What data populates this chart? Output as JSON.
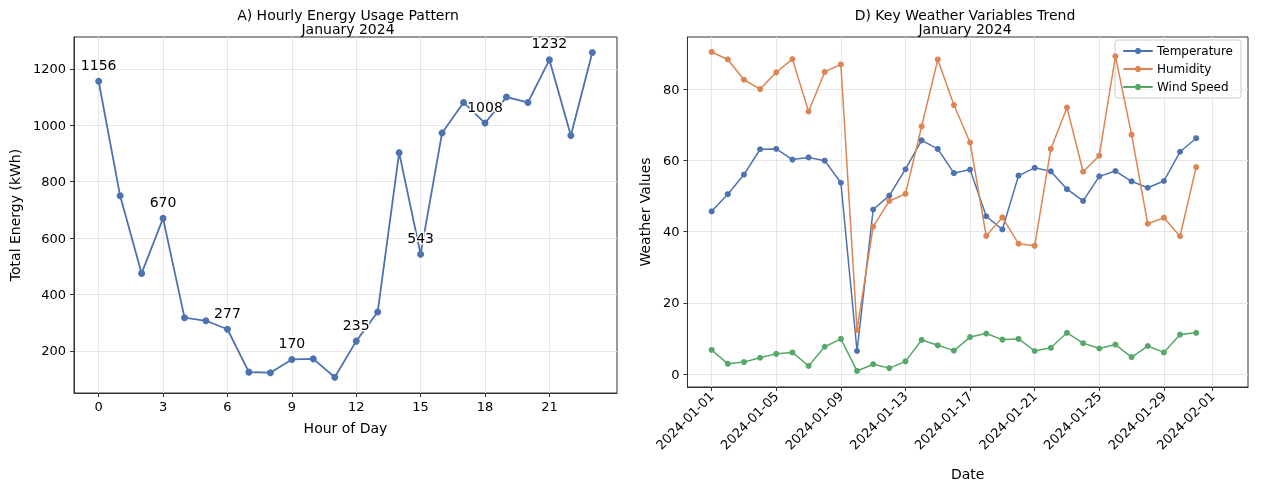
{
  "chart_data": [
    {
      "type": "line",
      "title": "A) Hourly Energy Usage Pattern",
      "subtitle": "January 2024",
      "xlabel": "Hour of Day",
      "ylabel": "Total Energy (kWh)",
      "x": [
        0,
        1,
        2,
        3,
        4,
        5,
        6,
        7,
        8,
        9,
        10,
        11,
        12,
        13,
        14,
        15,
        16,
        17,
        18,
        19,
        20,
        21,
        22,
        23
      ],
      "series": [
        {
          "color": "#4c72b0",
          "values": [
            1156,
            750,
            475,
            670,
            318,
            307,
            277,
            125,
            123,
            170,
            172,
            107,
            235,
            338,
            903,
            543,
            973,
            1081,
            1008,
            1100,
            1081,
            1232,
            964,
            1258
          ],
          "value_labels": [
            "1156",
            null,
            null,
            "670",
            null,
            null,
            "277",
            null,
            null,
            "170",
            null,
            null,
            "235",
            null,
            null,
            "543",
            null,
            null,
            "1008",
            null,
            null,
            "1232",
            null,
            null
          ]
        }
      ],
      "xlim": [
        -1.15,
        24.15
      ],
      "xticks": [
        0,
        3,
        6,
        9,
        12,
        15,
        18,
        21
      ],
      "ylim": [
        51,
        1313
      ],
      "yticks": [
        200,
        400,
        600,
        800,
        1000,
        1200
      ],
      "grid": true,
      "marker": "circle",
      "line_style": "solid",
      "legend": false
    },
    {
      "type": "line",
      "title": "D) Key Weather Variables Trend",
      "subtitle": "January 2024",
      "xlabel": "Date",
      "ylabel": "Weather Values",
      "x": [
        "2024-01-01",
        "2024-01-02",
        "2024-01-03",
        "2024-01-04",
        "2024-01-05",
        "2024-01-06",
        "2024-01-07",
        "2024-01-08",
        "2024-01-09",
        "2024-01-10",
        "2024-01-11",
        "2024-01-12",
        "2024-01-13",
        "2024-01-14",
        "2024-01-15",
        "2024-01-16",
        "2024-01-17",
        "2024-01-18",
        "2024-01-19",
        "2024-01-20",
        "2024-01-21",
        "2024-01-22",
        "2024-01-23",
        "2024-01-24",
        "2024-01-25",
        "2024-01-26",
        "2024-01-27",
        "2024-01-28",
        "2024-01-29",
        "2024-01-30",
        "2024-01-31"
      ],
      "series": [
        {
          "name": "Temperature",
          "color": "#4c72b0",
          "values": [
            45.7,
            50.5,
            56.0,
            63.1,
            63.2,
            60.2,
            60.8,
            59.9,
            53.7,
            6.5,
            46.2,
            50.1,
            57.5,
            65.6,
            63.2,
            56.4,
            57.4,
            44.3,
            40.6,
            55.7,
            57.9,
            56.9,
            51.9,
            48.6,
            55.5,
            57.0,
            54.1,
            52.3,
            54.2,
            62.4,
            66.2
          ]
        },
        {
          "name": "Humidity",
          "color": "#dd8452",
          "values": [
            90.4,
            88.3,
            82.6,
            80.0,
            84.7,
            88.4,
            73.7,
            84.8,
            86.9,
            12.4,
            41.4,
            48.6,
            50.6,
            69.5,
            88.3,
            75.5,
            65.0,
            38.8,
            44.0,
            36.6,
            36.0,
            63.2,
            74.8,
            56.8,
            61.3,
            89.2,
            67.2,
            42.2,
            43.9,
            38.7,
            58.1
          ]
        },
        {
          "name": "Wind Speed",
          "color": "#55a868",
          "values": [
            6.8,
            2.9,
            3.4,
            4.6,
            5.7,
            6.1,
            2.3,
            7.7,
            9.9,
            0.9,
            2.8,
            1.7,
            3.6,
            9.6,
            8.1,
            6.6,
            10.4,
            11.4,
            9.7,
            9.9,
            6.5,
            7.4,
            11.6,
            8.7,
            7.2,
            8.3,
            4.8,
            7.9,
            6.1,
            11.1,
            11.6
          ]
        }
      ],
      "xlim": [
        "2023-12-30T12:00",
        "2024-02-03T05:00"
      ],
      "xticks": [
        "2024-01-01",
        "2024-01-05",
        "2024-01-09",
        "2024-01-13",
        "2024-01-17",
        "2024-01-21",
        "2024-01-25",
        "2024-01-29",
        "2024-02-01"
      ],
      "ylim": [
        -3.6,
        94.6
      ],
      "yticks": [
        0,
        20,
        40,
        60,
        80
      ],
      "grid": true,
      "marker": "circle",
      "line_style": "solid",
      "legend": "top right"
    }
  ]
}
